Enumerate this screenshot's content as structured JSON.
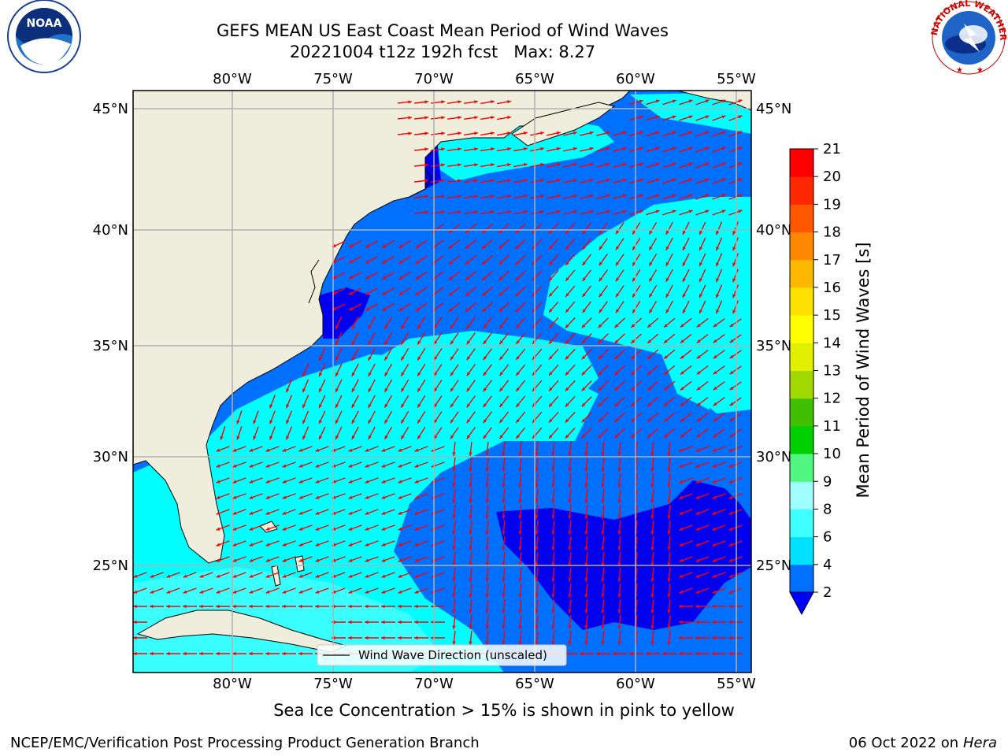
{
  "title": {
    "line1": "GEFS MEAN US East Coast Mean Period of Wind Waves",
    "line2": "20221004 t12z 192h fcst   Max: 8.27"
  },
  "lon_labels": [
    "80°W",
    "75°W",
    "70°W",
    "65°W",
    "60°W",
    "55°W"
  ],
  "lat_labels": [
    "45°N",
    "40°N",
    "35°N",
    "30°N",
    "25°N"
  ],
  "legend_text": "Wind Wave Direction (unscaled)",
  "colorbar": {
    "label": "Mean Period of Wind Waves [s]",
    "ticks": [
      "2",
      "4",
      "6",
      "8",
      "9",
      "10",
      "11",
      "12",
      "13",
      "14",
      "15",
      "16",
      "17",
      "18",
      "19",
      "20",
      "21"
    ],
    "colors": [
      "#0070ff",
      "#00e0ff",
      "#40ffff",
      "#a0ffff",
      "#50f880",
      "#00d000",
      "#40c000",
      "#a0d800",
      "#e0f000",
      "#ffff00",
      "#ffe000",
      "#ffb800",
      "#ff8800",
      "#ff5800",
      "#ff2800",
      "#ff0000"
    ],
    "extend_color": "#0000ff"
  },
  "map_colors": {
    "land": "#efeedc",
    "period_2_4": "#0070ff",
    "period_under_2": "#0000ee",
    "period_4_6": "#00ffff",
    "period_6_8": "#40ffff",
    "arrow": "#ff0000"
  },
  "subtitle": "Sea Ice Concentration > 15% is shown in pink to yellow",
  "footer": {
    "left": "NCEP/EMC/Verification Post Processing Product Generation Branch",
    "right_date": "06 Oct 2022 on",
    "right_machine": "Hera"
  },
  "logos": {
    "noaa_text": "NOAA",
    "nws_ring": "NATIONAL WEATHER SERVICE"
  }
}
